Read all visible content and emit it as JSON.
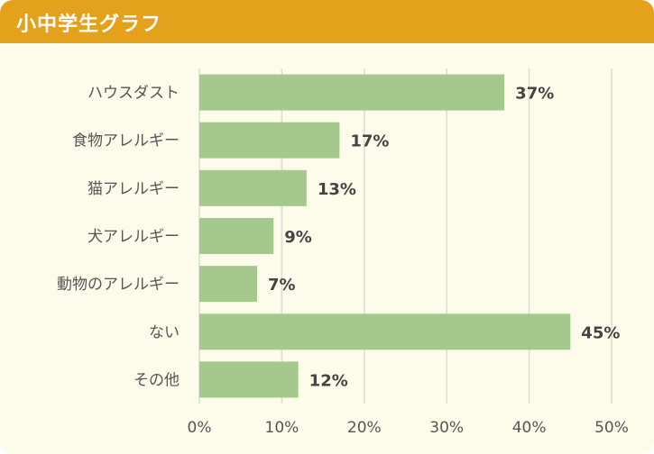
{
  "header": {
    "title": "小中学生グラフ"
  },
  "colors": {
    "header": "#e3a11c",
    "background": "#fdfcea",
    "bar": "#a5c98c",
    "grid": "#dcdcd0"
  },
  "chart_data": {
    "type": "bar",
    "orientation": "horizontal",
    "categories": [
      "ハウスダスト",
      "食物アレルギー",
      "猫アレルギー",
      "犬アレルギー",
      "動物のアレルギー",
      "ない",
      "その他"
    ],
    "values": [
      37,
      17,
      13,
      9,
      7,
      45,
      12
    ],
    "value_labels": [
      "37%",
      "17%",
      "13%",
      "9%",
      "7%",
      "45%",
      "12%"
    ],
    "x_ticks": [
      0,
      10,
      20,
      30,
      40,
      50
    ],
    "x_tick_labels": [
      "0%",
      "10%",
      "20%",
      "30%",
      "40%",
      "50%"
    ],
    "xlim": [
      0,
      50
    ],
    "grid": true,
    "legend": "none"
  }
}
